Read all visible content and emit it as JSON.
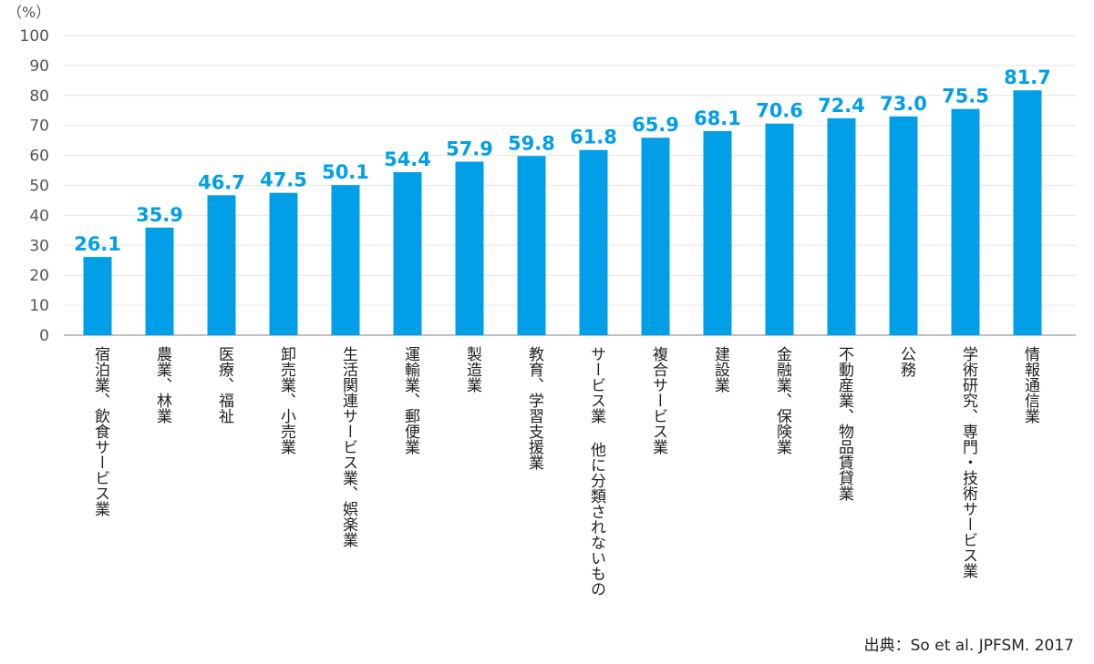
{
  "y_unit_label": "（%）",
  "source_text": "出典：So et al. JPFSM. 2017",
  "colors": {
    "bar": "#009fe8",
    "value_label": "#009fe8",
    "grid": "#e6e6e6",
    "axis": "#999999"
  },
  "chart_data": {
    "type": "bar",
    "title": "",
    "xlabel": "",
    "ylabel": "（%）",
    "ylim": [
      0,
      100
    ],
    "yticks": [
      0,
      10,
      20,
      30,
      40,
      50,
      60,
      70,
      80,
      90,
      100
    ],
    "grid": true,
    "categories": [
      "宿泊業、飲食サービス業",
      "農業、林業",
      "医療、福祉",
      "卸売業、小売業",
      "生活関連サービス業、娯楽業",
      "運輸業、郵便業",
      "製造業",
      "教育、学習支援業",
      "サービス業 他に分類されないもの",
      "複合サービス業",
      "建設業",
      "金融業、保険業",
      "不動産業、物品賃貸業",
      "公務",
      "学術研究、専門・技術サービス業",
      "情報通信業"
    ],
    "values": [
      26.1,
      35.9,
      46.7,
      47.5,
      50.1,
      54.4,
      57.9,
      59.8,
      61.8,
      65.9,
      68.1,
      70.6,
      72.4,
      73.0,
      75.5,
      81.7
    ],
    "value_labels": [
      "26.1",
      "35.9",
      "46.7",
      "47.5",
      "50.1",
      "54.4",
      "57.9",
      "59.8",
      "61.8",
      "65.9",
      "68.1",
      "70.6",
      "72.4",
      "73.0",
      "75.5",
      "81.7"
    ]
  }
}
